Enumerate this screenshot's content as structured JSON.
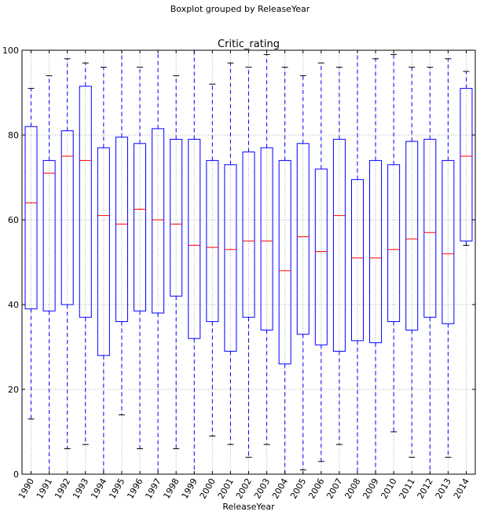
{
  "figure": {
    "suptitle": "Boxplot grouped by ReleaseYear"
  },
  "chart_data": {
    "type": "box",
    "title": "Critic_rating",
    "xlabel": "ReleaseYear",
    "ylabel": "",
    "ylim": [
      0,
      100
    ],
    "yticks": [
      0,
      20,
      40,
      60,
      80,
      100
    ],
    "grid": true,
    "colors": {
      "box": "#0000ff",
      "median": "#ff0000",
      "whisker": "#0000ff",
      "cap": "#000000",
      "grid": "#b0b0b0"
    },
    "categories": [
      "1990",
      "1991",
      "1992",
      "1993",
      "1994",
      "1995",
      "1996",
      "1997",
      "1998",
      "1999",
      "2000",
      "2001",
      "2002",
      "2003",
      "2004",
      "2005",
      "2006",
      "2007",
      "2008",
      "2009",
      "2010",
      "2011",
      "2012",
      "2013",
      "2014"
    ],
    "boxes": [
      {
        "whislo": 13,
        "q1": 39,
        "med": 64,
        "q3": 82,
        "whishi": 91
      },
      {
        "whislo": 0,
        "q1": 38.5,
        "med": 71,
        "q3": 74,
        "whishi": 94
      },
      {
        "whislo": 6,
        "q1": 40,
        "med": 75,
        "q3": 81,
        "whishi": 98
      },
      {
        "whislo": 7,
        "q1": 37,
        "med": 74,
        "q3": 91.5,
        "whishi": 97
      },
      {
        "whislo": 0,
        "q1": 28,
        "med": 61,
        "q3": 77,
        "whishi": 96
      },
      {
        "whislo": 14,
        "q1": 36,
        "med": 59,
        "q3": 79.5,
        "whishi": 100
      },
      {
        "whislo": 6,
        "q1": 38.5,
        "med": 62.5,
        "q3": 78,
        "whishi": 96
      },
      {
        "whislo": 0,
        "q1": 38,
        "med": 60,
        "q3": 81.5,
        "whishi": 100
      },
      {
        "whislo": 6,
        "q1": 42,
        "med": 59,
        "q3": 79,
        "whishi": 94
      },
      {
        "whislo": 0,
        "q1": 32,
        "med": 54,
        "q3": 79,
        "whishi": 100
      },
      {
        "whislo": 9,
        "q1": 36,
        "med": 53.5,
        "q3": 74,
        "whishi": 92
      },
      {
        "whislo": 7,
        "q1": 29,
        "med": 53,
        "q3": 73,
        "whishi": 97
      },
      {
        "whislo": 4,
        "q1": 37,
        "med": 55,
        "q3": 76,
        "whishi": 96
      },
      {
        "whislo": 7,
        "q1": 34,
        "med": 55,
        "q3": 77,
        "whishi": 99
      },
      {
        "whislo": 0,
        "q1": 26,
        "med": 48,
        "q3": 74,
        "whishi": 96
      },
      {
        "whislo": 1,
        "q1": 33,
        "med": 56,
        "q3": 78,
        "whishi": 94
      },
      {
        "whislo": 3,
        "q1": 30.5,
        "med": 52.5,
        "q3": 72,
        "whishi": 97
      },
      {
        "whislo": 7,
        "q1": 29,
        "med": 61,
        "q3": 79,
        "whishi": 96
      },
      {
        "whislo": 0,
        "q1": 31.5,
        "med": 51,
        "q3": 69.5,
        "whishi": 100
      },
      {
        "whislo": 0,
        "q1": 31,
        "med": 51,
        "q3": 74,
        "whishi": 98
      },
      {
        "whislo": 10,
        "q1": 36,
        "med": 53,
        "q3": 73,
        "whishi": 99
      },
      {
        "whislo": 4,
        "q1": 34,
        "med": 55.5,
        "q3": 78.5,
        "whishi": 96
      },
      {
        "whislo": 0,
        "q1": 37,
        "med": 57,
        "q3": 79,
        "whishi": 96
      },
      {
        "whislo": 4,
        "q1": 35.5,
        "med": 52,
        "q3": 74,
        "whishi": 98
      },
      {
        "whislo": 54,
        "q1": 55,
        "med": 75,
        "q3": 91,
        "whishi": 95
      }
    ]
  }
}
